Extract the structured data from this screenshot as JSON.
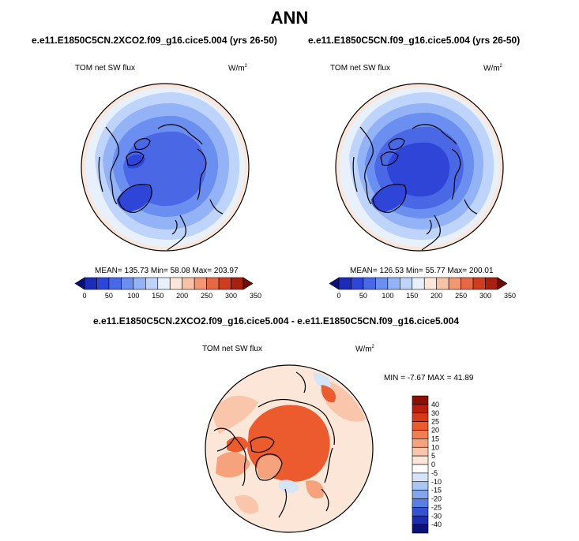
{
  "main_title": "ANN",
  "panels": [
    {
      "title": "e.e11.E1850C5CN.2XCO2.f09_g16.cice5.004 (yrs 26-50)",
      "variable": "TOM net SW flux",
      "unit": "W/m",
      "unit_exp": "2",
      "stats": "MEAN= 135.73  Min=  58.08  Max= 203.97"
    },
    {
      "title": "e.e11.E1850C5CN.f09_g16.cice5.004 (yrs 26-50)",
      "variable": "TOM net SW flux",
      "unit": "W/m",
      "unit_exp": "2",
      "stats": "MEAN= 126.53  Min=  55.77  Max= 200.01"
    }
  ],
  "diff_panel": {
    "title": "e.e11.E1850C5CN.2XCO2.f09_g16.cice5.004 - e.e11.E1850C5CN.f09_g16.cice5.004",
    "variable": "TOM net SW flux",
    "unit": "W/m",
    "unit_exp": "2",
    "stats": "MIN =  -7.67 MAX =  41.89"
  },
  "chart_data": [
    {
      "type": "heatmap",
      "projection": "north polar stereographic",
      "title": "e.e11.E1850C5CN.2XCO2.f09_g16.cice5.004 (yrs 26-50)",
      "variable": "TOM net SW flux",
      "units": "W/m2",
      "mean": 135.73,
      "min": 58.08,
      "max": 203.97,
      "colorbar": {
        "orientation": "horizontal",
        "levels": [
          0,
          25,
          50,
          75,
          100,
          125,
          150,
          175,
          200,
          225,
          250,
          275,
          300,
          325,
          350
        ],
        "tick_labels": [
          "0",
          "50",
          "100",
          "150",
          "200",
          "250",
          "300",
          "350"
        ],
        "colors": [
          "#0a1078",
          "#1c2bb8",
          "#2e45d8",
          "#4a68e6",
          "#6a8ff0",
          "#93b3f6",
          "#bfd4fa",
          "#e8f0fc",
          "#fbe6d9",
          "#f7c3a6",
          "#f19873",
          "#e76845",
          "#cf3d20",
          "#a82010",
          "#6f0b06"
        ]
      }
    },
    {
      "type": "heatmap",
      "projection": "north polar stereographic",
      "title": "e.e11.E1850C5CN.f09_g16.cice5.004 (yrs 26-50)",
      "variable": "TOM net SW flux",
      "units": "W/m2",
      "mean": 126.53,
      "min": 55.77,
      "max": 200.01,
      "colorbar": {
        "orientation": "horizontal",
        "levels": [
          0,
          25,
          50,
          75,
          100,
          125,
          150,
          175,
          200,
          225,
          250,
          275,
          300,
          325,
          350
        ],
        "tick_labels": [
          "0",
          "50",
          "100",
          "150",
          "200",
          "250",
          "300",
          "350"
        ],
        "colors": [
          "#0a1078",
          "#1c2bb8",
          "#2e45d8",
          "#4a68e6",
          "#6a8ff0",
          "#93b3f6",
          "#bfd4fa",
          "#e8f0fc",
          "#fbe6d9",
          "#f7c3a6",
          "#f19873",
          "#e76845",
          "#cf3d20",
          "#a82010",
          "#6f0b06"
        ]
      }
    },
    {
      "type": "heatmap",
      "projection": "north polar stereographic",
      "title": "e.e11.E1850C5CN.2XCO2.f09_g16.cice5.004 - e.e11.E1850C5CN.f09_g16.cice5.004",
      "variable": "TOM net SW flux",
      "units": "W/m2",
      "min": -7.67,
      "max": 41.89,
      "colorbar": {
        "orientation": "vertical",
        "tick_labels": [
          "40",
          "30",
          "25",
          "20",
          "15",
          "10",
          "5",
          "0",
          "-5",
          "-10",
          "-15",
          "-20",
          "-25",
          "-30",
          "-40"
        ],
        "colors": [
          "#8a0f07",
          "#b81d0d",
          "#d8381a",
          "#ec5b2e",
          "#f27e4f",
          "#f6a27c",
          "#f9c6ab",
          "#fce6d8",
          "#ffffff",
          "#d6e4f8",
          "#aac6f2",
          "#84a6ec",
          "#5a7ee2",
          "#3552d2",
          "#1d2cb0",
          "#0c117a"
        ]
      }
    }
  ]
}
